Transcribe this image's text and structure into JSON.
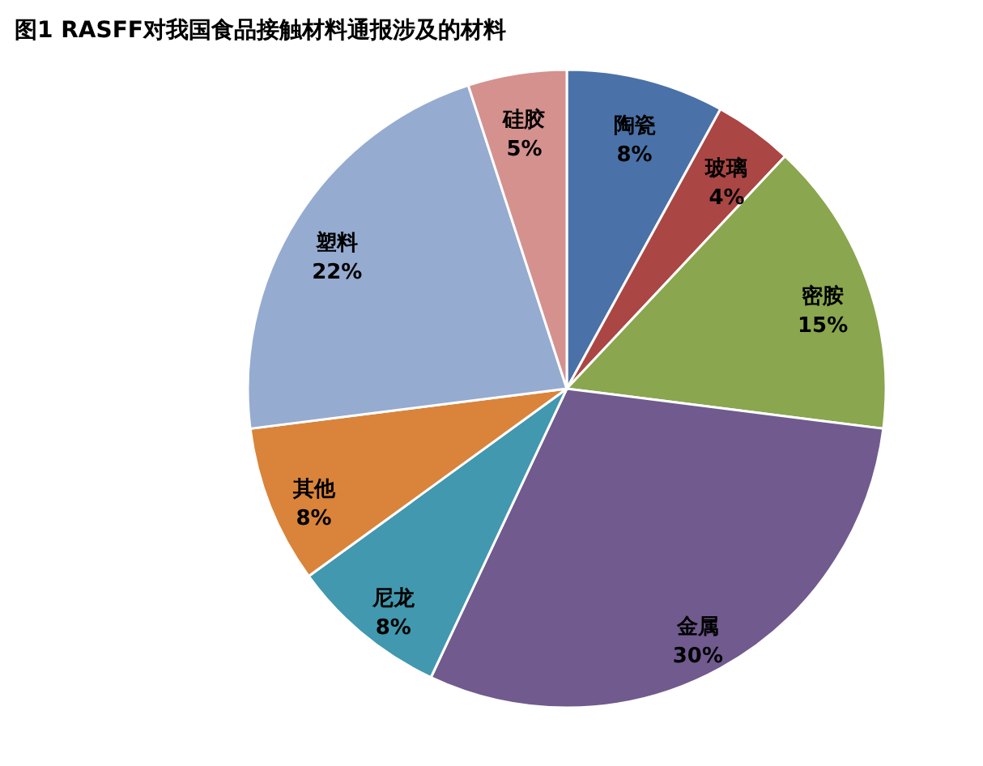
{
  "chart_data": {
    "type": "pie",
    "title": "图1 RASFF对我国食品接触材料通报涉及的材料",
    "categories": [
      "陶瓷",
      "玻璃",
      "密胺",
      "金属",
      "尼龙",
      "其他",
      "塑料",
      "硅胶"
    ],
    "values": [
      8,
      4,
      15,
      30,
      8,
      8,
      22,
      5
    ],
    "value_labels": [
      "8%",
      "4%",
      "15%",
      "30%",
      "8%",
      "8%",
      "22%",
      "5%"
    ],
    "colors": [
      "#4a72a8",
      "#aa4644",
      "#8aa64e",
      "#705a8e",
      "#4298ae",
      "#d9843a",
      "#95abd0",
      "#d4918e"
    ],
    "legend": false
  }
}
